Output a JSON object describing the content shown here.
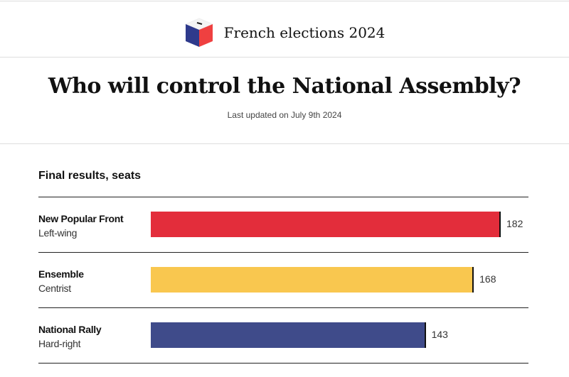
{
  "header": {
    "brand": "French elections 2024",
    "title": "Who will control the National Assembly?",
    "updated": "Last updated on July 9th 2024"
  },
  "chart_data": {
    "type": "bar",
    "title": "Final results, seats",
    "categories": [
      "New Popular Front",
      "Ensemble",
      "National Rally"
    ],
    "subcategories": [
      "Left-wing",
      "Centrist",
      "Hard-right"
    ],
    "values": [
      182,
      168,
      143
    ],
    "colors": [
      "#e32d3b",
      "#f9c74f",
      "#3f4b8a"
    ],
    "xlabel": "",
    "ylabel": "",
    "xlim": [
      0,
      182
    ]
  }
}
